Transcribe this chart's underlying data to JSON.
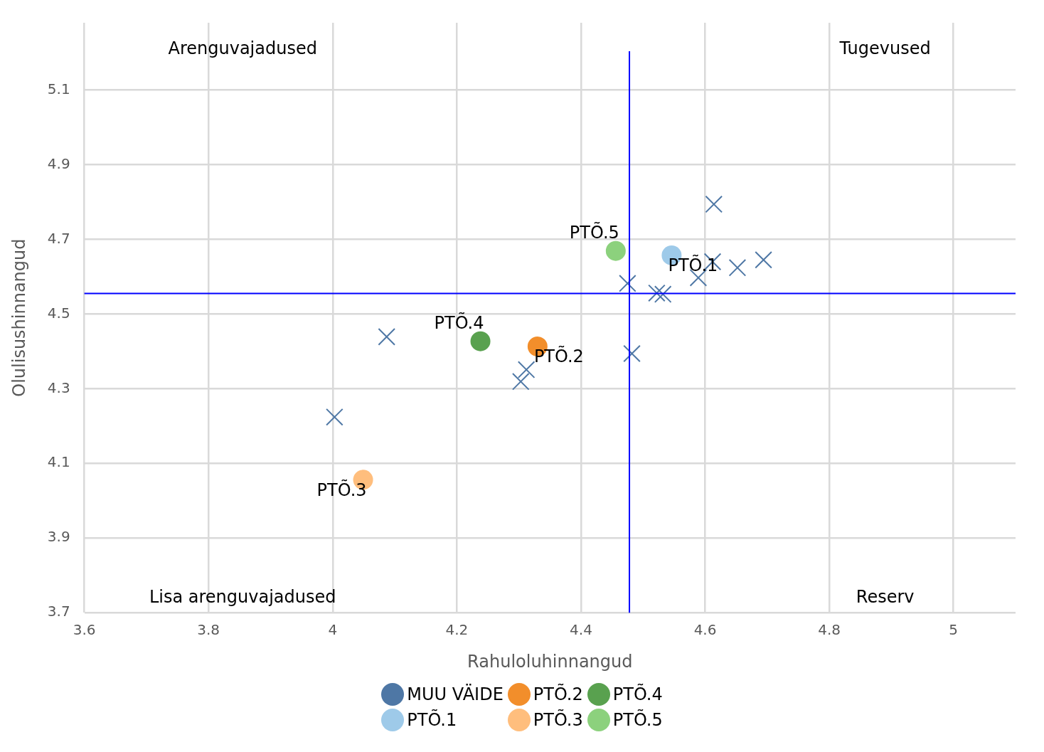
{
  "chart_data": {
    "type": "scatter",
    "xlabel": "Rahuloluhinnangud",
    "ylabel": "Olulisushinnangud",
    "xlim": [
      3.6,
      5.1
    ],
    "xticks": [
      3.6,
      3.8,
      4,
      4.2,
      4.4,
      4.6,
      4.8,
      5
    ],
    "ylim": [
      3.7,
      5.28
    ],
    "yticks": [
      3.7,
      3.9,
      4.1,
      4.3,
      4.5,
      4.7,
      4.9,
      5.1
    ],
    "grid": true,
    "legend": "bottom",
    "series": [
      {
        "name": "MUU VÄIDE",
        "color": "#4e77a5",
        "marker": "cross",
        "x": [
          4.614,
          4.612,
          4.652,
          4.694,
          4.589,
          4.475,
          4.522,
          4.532,
          4.482,
          4.087,
          4.003,
          4.312,
          4.303
        ],
        "values": [
          4.794,
          4.64,
          4.624,
          4.645,
          4.597,
          4.582,
          4.556,
          4.553,
          4.394,
          4.439,
          4.224,
          4.351,
          4.319
        ]
      },
      {
        "name": "PTÕ.1",
        "color": "#9ecae9",
        "marker": "circle",
        "x": [
          4.546
        ],
        "values": [
          4.657
        ]
      },
      {
        "name": "PTÕ.2",
        "color": "#f28e2b",
        "marker": "circle",
        "x": [
          4.33
        ],
        "values": [
          4.413
        ]
      },
      {
        "name": "PTÕ.3",
        "color": "#ffbe7d",
        "marker": "circle",
        "x": [
          4.049
        ],
        "values": [
          4.056
        ]
      },
      {
        "name": "PTÕ.4",
        "color": "#59a14f",
        "marker": "circle",
        "x": [
          4.238
        ],
        "values": [
          4.427
        ]
      },
      {
        "name": "PTÕ.5",
        "color": "#8cd17d",
        "marker": "circle",
        "x": [
          4.456
        ],
        "values": [
          4.669
        ]
      }
    ],
    "ref_lines": [
      {
        "axis": "x",
        "value": 4.478,
        "color": "#0000ff"
      },
      {
        "axis": "y",
        "value": 4.555,
        "color": "#0000ff"
      }
    ],
    "annotations": [
      "Arenguvajadused",
      "Tugevused",
      "Lisa arenguvajadused",
      "Reserv"
    ]
  }
}
